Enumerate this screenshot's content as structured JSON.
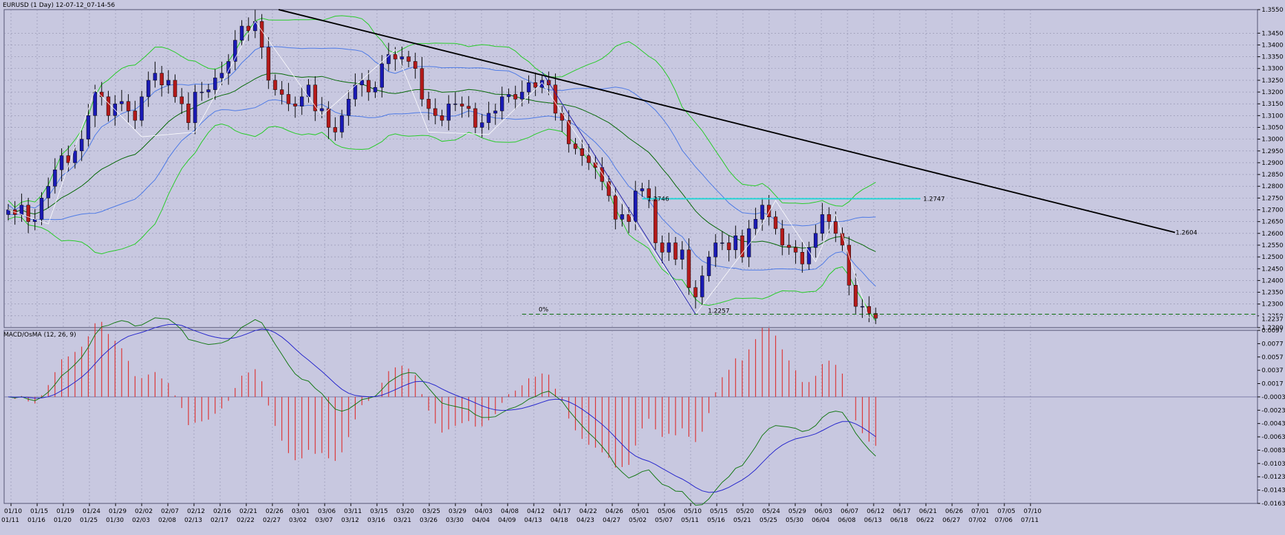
{
  "colors": {
    "background": "#c8c8e0",
    "grid": "#8a8aa8",
    "candle_up": "#1a1ab4",
    "candle_down": "#b41a1a",
    "bb_outer": "#22cc22",
    "bb_mid": "#006600",
    "bb_inner": "#4a78e6",
    "trendline": "#000000",
    "resistance": "#22d6d6",
    "support_dash": "#006600",
    "macd_hist": "#dd3333",
    "macd_main": "#2222cc",
    "macd_signal": "#117711",
    "zigzag": "#ffffff",
    "fib_line": "#2222aa"
  },
  "chart_data": [
    {
      "type": "candlestick",
      "title": "EURUSD (1 Day) 12-07-12_07-14-56",
      "ylim": [
        1.22,
        1.355
      ],
      "y_ticks": [
        "1.3550",
        "1.3450",
        "1.3400",
        "1.3350",
        "1.3300",
        "1.3250",
        "1.3200",
        "1.3150",
        "1.3100",
        "1.3050",
        "1.3000",
        "1.2950",
        "1.2900",
        "1.2850",
        "1.2800",
        "1.2750",
        "1.2700",
        "1.2650",
        "1.2600",
        "1.2550",
        "1.2500",
        "1.2450",
        "1.2400",
        "1.2350",
        "1.2300",
        "1.2250",
        "1.2200"
      ],
      "current_price_label": "1.2237",
      "grid": true,
      "annotations": [
        {
          "text": "1.2746"
        },
        {
          "text": "1.2747"
        },
        {
          "text": "1.2604"
        },
        {
          "text": "1.2257"
        },
        {
          "text": "0%"
        }
      ],
      "closes": [
        1.27,
        1.268,
        1.272,
        1.265,
        1.266,
        1.275,
        1.28,
        1.287,
        1.293,
        1.29,
        1.295,
        1.3,
        1.31,
        1.32,
        1.318,
        1.31,
        1.315,
        1.316,
        1.312,
        1.308,
        1.318,
        1.325,
        1.328,
        1.323,
        1.325,
        1.318,
        1.315,
        1.307,
        1.32,
        1.32,
        1.321,
        1.326,
        1.328,
        1.333,
        1.342,
        1.348,
        1.346,
        1.35,
        1.339,
        1.325,
        1.321,
        1.319,
        1.315,
        1.314,
        1.318,
        1.323,
        1.312,
        1.313,
        1.305,
        1.303,
        1.31,
        1.317,
        1.323,
        1.325,
        1.32,
        1.322,
        1.332,
        1.336,
        1.334,
        1.335,
        1.333,
        1.33,
        1.317,
        1.313,
        1.31,
        1.308,
        1.315,
        1.315,
        1.314,
        1.313,
        1.305,
        1.307,
        1.311,
        1.312,
        1.318,
        1.319,
        1.317,
        1.32,
        1.324,
        1.322,
        1.325,
        1.323,
        1.311,
        1.308,
        1.298,
        1.296,
        1.293,
        1.29,
        1.288,
        1.282,
        1.276,
        1.266,
        1.268,
        1.265,
        1.278,
        1.279,
        1.275,
        1.256,
        1.252,
        1.256,
        1.249,
        1.253,
        1.237,
        1.233,
        1.242,
        1.25,
        1.256,
        1.256,
        1.253,
        1.259,
        1.25,
        1.262,
        1.266,
        1.272,
        1.267,
        1.262,
        1.255,
        1.254,
        1.252,
        1.247,
        1.254,
        1.26,
        1.268,
        1.265,
        1.26,
        1.255,
        1.238,
        1.229,
        1.229,
        1.226,
        1.224
      ],
      "x_ticks_top": [
        "01/11",
        "01/16",
        "01/20",
        "01/25",
        "01/30",
        "02/03",
        "02/08",
        "02/13",
        "02/17",
        "02/22",
        "02/27",
        "03/02",
        "03/07",
        "03/12",
        "03/16",
        "03/21",
        "03/26",
        "03/30",
        "04/04",
        "04/09",
        "04/13",
        "04/18",
        "04/23",
        "04/27",
        "05/02",
        "05/07",
        "05/11",
        "05/16",
        "05/21",
        "05/25",
        "05/30",
        "06/04",
        "06/08",
        "06/13",
        "06/18",
        "06/22",
        "06/27",
        "07/02",
        "07/06",
        "07/11"
      ],
      "x_ticks_bottom": [
        "01/10",
        "01/15",
        "01/19",
        "01/24",
        "01/29",
        "02/02",
        "02/07",
        "02/12",
        "02/16",
        "02/21",
        "02/26",
        "03/01",
        "03/06",
        "03/11",
        "03/15",
        "03/20",
        "03/25",
        "03/29",
        "04/03",
        "04/08",
        "04/12",
        "04/17",
        "04/22",
        "04/26",
        "05/01",
        "05/06",
        "05/10",
        "05/15",
        "05/20",
        "05/24",
        "05/29",
        "06/03",
        "06/07",
        "06/12",
        "06/17",
        "06/21",
        "06/26",
        "07/01",
        "07/05",
        "07/10"
      ]
    },
    {
      "type": "bar",
      "title": "MACD/OsMA (12, 26, 9)",
      "ylim": [
        -0.0163,
        0.0097
      ],
      "y_ticks": [
        "0.0097",
        "0.0077",
        "0.0057",
        "0.0037",
        "0.0017",
        "-0.0003",
        "-0.0023",
        "-0.0043",
        "-0.0063",
        "-0.0083",
        "-0.0103",
        "-0.0123",
        "-0.0143",
        "-0.0163"
      ],
      "grid": true
    }
  ]
}
